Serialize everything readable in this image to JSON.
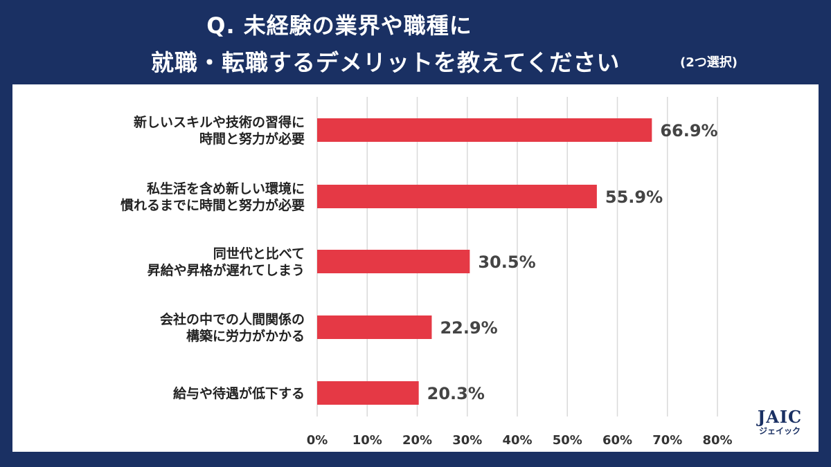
{
  "title": {
    "line1": "Q.  未経験の業界や職種に",
    "line2": "就職・転職するデメリットを教えてください",
    "note": "(2つ選択)"
  },
  "colors": {
    "background": "#1a3063",
    "bar": "#e53945",
    "grid": "#d9d9d9"
  },
  "logo": {
    "main": "JAIC",
    "sub": "ジェイック"
  },
  "chart_data": {
    "type": "bar",
    "orientation": "horizontal",
    "categories": [
      [
        "新しいスキルや技術の習得に",
        "時間と努力が必要"
      ],
      [
        "私生活を含め新しい環境に",
        "慣れるまでに時間と努力が必要"
      ],
      [
        "同世代と比べて",
        "昇給や昇格が遅れてしまう"
      ],
      [
        "会社の中での人間関係の",
        "構築に労力がかかる"
      ],
      [
        "給与や待遇が低下する"
      ]
    ],
    "values": [
      66.9,
      55.9,
      30.5,
      22.9,
      20.3
    ],
    "value_labels": [
      "66.9%",
      "55.9%",
      "30.5%",
      "22.9%",
      "20.3%"
    ],
    "xlim": [
      0,
      80
    ],
    "x_ticks": [
      0,
      10,
      20,
      30,
      40,
      50,
      60,
      70,
      80
    ],
    "x_tick_labels": [
      "0%",
      "10%",
      "20%",
      "30%",
      "40%",
      "50%",
      "60%",
      "70%",
      "80%"
    ],
    "grid": true,
    "legend": false
  }
}
